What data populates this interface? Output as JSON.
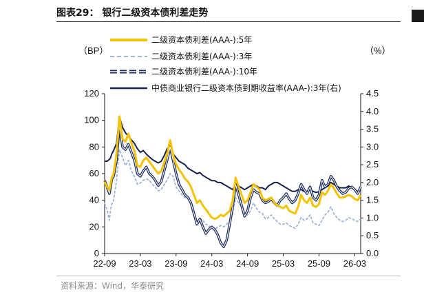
{
  "figure": {
    "title": "图表29：  银行二级资本债利差走势",
    "source_note": "资料来源：Wind，华泰研究"
  },
  "chart_data": {
    "type": "line",
    "left_unit_label": "（BP）",
    "right_unit_label": "（%）",
    "x_ticks": [
      "22-09",
      "23-03",
      "23-09",
      "24-03",
      "24-09",
      "25-03",
      "25-09",
      "26-03"
    ],
    "x_range": [
      "2022-09",
      "2026-04"
    ],
    "y_left": {
      "min": 0,
      "max": 120,
      "ticks": [
        "0",
        "20",
        "40",
        "60",
        "80",
        "100",
        "120"
      ]
    },
    "y_right": {
      "min": 0,
      "max": 4.5,
      "ticks": [
        "0.0",
        "0.5",
        "1.0",
        "1.5",
        "2.0",
        "2.5",
        "3.0",
        "3.5",
        "4.0",
        "4.5"
      ]
    },
    "grid": false,
    "legend_position": "top-left",
    "series": [
      {
        "name": "二级资本债利差(AAA-):5年",
        "axis": "left",
        "color": "#f5c200",
        "style": "solid",
        "t": [
          0,
          0.4,
          0.8,
          1.0,
          1.2,
          1.5,
          2.0,
          2.5,
          3.0,
          3.5,
          4.0,
          4.5,
          5.0,
          5.5,
          6.0,
          6.5,
          7.0,
          7.5,
          8.0,
          8.5,
          9.0,
          9.5,
          10.0,
          10.5,
          11.0,
          11.5,
          12.0,
          12.5,
          13.0,
          13.5,
          14.0,
          14.5,
          15.0,
          15.5,
          16.0,
          16.5,
          17.0,
          17.5,
          18.0,
          18.5,
          19.0,
          19.5,
          20.0,
          20.5,
          21.0,
          21.5,
          22.0,
          22.5,
          23.0,
          23.5,
          24.0,
          24.5,
          25.0,
          25.5,
          26.0,
          26.5,
          27.0,
          27.5,
          28.0,
          28.5,
          29.0,
          29.5,
          30.0,
          30.5,
          31.0,
          31.5,
          32.0,
          32.5,
          33.0,
          33.5,
          34.0,
          34.5,
          35.0,
          35.5,
          36.0,
          36.5,
          37.0,
          37.5,
          38.0,
          38.5,
          39.0,
          39.5,
          40.0,
          40.5,
          41.0,
          41.5,
          42.0,
          42.5,
          43.0
        ],
        "values": [
          54,
          50,
          48,
          52,
          57,
          60,
          75,
          103,
          86,
          84,
          90,
          83,
          77,
          66,
          65,
          70,
          72,
          69,
          66,
          63,
          60,
          62,
          68,
          75,
          85,
          74,
          67,
          63,
          60,
          56,
          54,
          50,
          44,
          38,
          40,
          36,
          33,
          30,
          27,
          26,
          27,
          29,
          28,
          30,
          32,
          40,
          57,
          50,
          44,
          38,
          40,
          46,
          52,
          50,
          48,
          42,
          40,
          41,
          42,
          38,
          36,
          35,
          34,
          36,
          32,
          31,
          30,
          35,
          44,
          40,
          38,
          42,
          36,
          35,
          37,
          46,
          44,
          47,
          52,
          49,
          45,
          42,
          42,
          43,
          44,
          43,
          41,
          40,
          44
        ]
      },
      {
        "name": "二级资本债利差(AAA-):3年",
        "axis": "left",
        "color": "#9fb4da",
        "style": "dashed",
        "t": [
          0,
          0.4,
          0.8,
          1.0,
          1.2,
          1.5,
          2.0,
          2.5,
          3.0,
          3.5,
          4.0,
          4.5,
          5.0,
          5.5,
          6.0,
          6.5,
          7.0,
          7.5,
          8.0,
          8.5,
          9.0,
          9.5,
          10.0,
          10.5,
          11.0,
          11.5,
          12.0,
          12.5,
          13.0,
          13.5,
          14.0,
          14.5,
          15.0,
          15.5,
          16.0,
          16.5,
          17.0,
          17.5,
          18.0,
          18.5,
          19.0,
          19.5,
          20.0,
          20.5,
          21.0,
          21.5,
          22.0,
          22.5,
          23.0,
          23.5,
          24.0,
          24.5,
          25.0,
          25.5,
          26.0,
          26.5,
          27.0,
          27.5,
          28.0,
          28.5,
          29.0,
          29.5,
          30.0,
          30.5,
          31.0,
          31.5,
          32.0,
          32.5,
          33.0,
          33.5,
          34.0,
          34.5,
          35.0,
          35.5,
          36.0,
          36.5,
          37.0,
          37.5,
          38.0,
          38.5,
          39.0,
          39.5,
          40.0,
          40.5,
          41.0,
          41.5,
          42.0,
          42.5,
          43.0
        ],
        "values": [
          38,
          33,
          25,
          33,
          37,
          40,
          55,
          78,
          72,
          66,
          70,
          62,
          58,
          52,
          53,
          55,
          56,
          55,
          52,
          50,
          47,
          48,
          52,
          55,
          60,
          58,
          50,
          47,
          44,
          42,
          41,
          38,
          31,
          24,
          26,
          25,
          22,
          21,
          19,
          18,
          20,
          21,
          20,
          22,
          24,
          30,
          42,
          38,
          35,
          30,
          29,
          32,
          38,
          34,
          31,
          30,
          26,
          27,
          29,
          26,
          24,
          22,
          22,
          23,
          21,
          20,
          19,
          22,
          27,
          25,
          26,
          29,
          23,
          22,
          21,
          25,
          29,
          31,
          35,
          30,
          27,
          25,
          24,
          25,
          27,
          26,
          25,
          24,
          26
        ]
      },
      {
        "name": "二级资本债利差(AAA-):10年",
        "axis": "left",
        "color": "#1b2a5c",
        "style": "double",
        "t": [
          0,
          0.4,
          0.8,
          1.0,
          1.2,
          1.5,
          2.0,
          2.5,
          3.0,
          3.5,
          4.0,
          4.5,
          5.0,
          5.5,
          6.0,
          6.5,
          7.0,
          7.5,
          8.0,
          8.5,
          9.0,
          9.5,
          10.0,
          10.5,
          11.0,
          11.5,
          12.0,
          12.5,
          13.0,
          13.5,
          14.0,
          14.5,
          15.0,
          15.5,
          16.0,
          16.5,
          17.0,
          17.5,
          18.0,
          18.5,
          19.0,
          19.5,
          20.0,
          20.5,
          21.0,
          21.5,
          22.0,
          22.5,
          23.0,
          23.5,
          24.0,
          24.5,
          25.0,
          25.5,
          26.0,
          26.5,
          27.0,
          27.5,
          28.0,
          28.5,
          29.0,
          29.5,
          30.0,
          30.5,
          31.0,
          31.5,
          32.0,
          32.5,
          33.0,
          33.5,
          34.0,
          34.5,
          35.0,
          35.5,
          36.0,
          36.5,
          37.0,
          37.5,
          38.0,
          38.5,
          39.0,
          39.5,
          40.0,
          40.5,
          41.0,
          41.5,
          42.0,
          42.5,
          43.0
        ],
        "values": [
          55,
          50,
          45,
          50,
          56,
          58,
          70,
          96,
          80,
          78,
          82,
          76,
          70,
          60,
          58,
          62,
          65,
          60,
          58,
          55,
          51,
          54,
          62,
          70,
          80,
          70,
          60,
          52,
          48,
          44,
          42,
          38,
          30,
          22,
          26,
          20,
          15,
          18,
          20,
          18,
          14,
          8,
          5,
          10,
          22,
          35,
          52,
          44,
          36,
          28,
          32,
          42,
          48,
          46,
          45,
          40,
          38,
          39,
          41,
          38,
          36,
          40,
          42,
          45,
          41,
          38,
          40,
          45,
          52,
          48,
          45,
          50,
          42,
          40,
          44,
          55,
          50,
          52,
          58,
          55,
          50,
          47,
          45,
          46,
          49,
          50,
          48,
          45,
          50
        ]
      },
      {
        "name": "中债商业银行二级资本债到期收益率(AAA-):3年(右)",
        "axis": "right",
        "color": "#14204d",
        "style": "solid",
        "t": [
          0,
          0.4,
          0.8,
          1.0,
          1.2,
          1.5,
          2.0,
          2.5,
          3.0,
          3.5,
          4.0,
          4.5,
          5.0,
          5.5,
          6.0,
          6.5,
          7.0,
          7.5,
          8.0,
          8.5,
          9.0,
          9.5,
          10.0,
          10.5,
          11.0,
          11.5,
          12.0,
          12.5,
          13.0,
          13.5,
          14.0,
          14.5,
          15.0,
          15.5,
          16.0,
          16.5,
          17.0,
          17.5,
          18.0,
          18.5,
          19.0,
          19.5,
          20.0,
          20.5,
          21.0,
          21.5,
          22.0,
          22.5,
          23.0,
          23.5,
          24.0,
          24.5,
          25.0,
          25.5,
          26.0,
          26.5,
          27.0,
          27.5,
          28.0,
          28.5,
          29.0,
          29.5,
          30.0,
          30.5,
          31.0,
          31.5,
          32.0,
          32.5,
          33.0,
          33.5,
          34.0,
          34.5,
          35.0,
          35.5,
          36.0,
          36.5,
          37.0,
          37.5,
          38.0,
          38.5,
          39.0,
          39.5,
          40.0,
          40.5,
          41.0,
          41.5,
          42.0,
          42.5,
          43.0
        ],
        "values": [
          2.6,
          2.6,
          2.65,
          2.7,
          2.8,
          2.9,
          3.1,
          3.85,
          3.55,
          3.4,
          3.3,
          3.2,
          3.1,
          2.95,
          2.85,
          2.9,
          2.8,
          2.72,
          2.65,
          2.6,
          2.55,
          2.6,
          2.75,
          2.95,
          3.05,
          2.8,
          2.7,
          2.6,
          2.55,
          2.5,
          2.4,
          2.35,
          2.3,
          2.25,
          2.28,
          2.2,
          2.15,
          2.1,
          2.05,
          2.05,
          2.0,
          2.0,
          1.95,
          1.9,
          1.85,
          1.8,
          1.95,
          1.9,
          1.85,
          1.8,
          1.85,
          1.9,
          1.95,
          1.9,
          1.85,
          1.85,
          1.8,
          1.9,
          1.95,
          2.0,
          2.0,
          1.95,
          1.9,
          1.85,
          1.8,
          1.75,
          1.75,
          1.8,
          1.8,
          1.75,
          1.75,
          1.8,
          1.75,
          1.72,
          1.74,
          1.8,
          1.85,
          1.9,
          2.0,
          1.95,
          1.9,
          1.85,
          1.85,
          1.85,
          1.9,
          1.85,
          1.8,
          1.75,
          1.8
        ]
      }
    ]
  }
}
